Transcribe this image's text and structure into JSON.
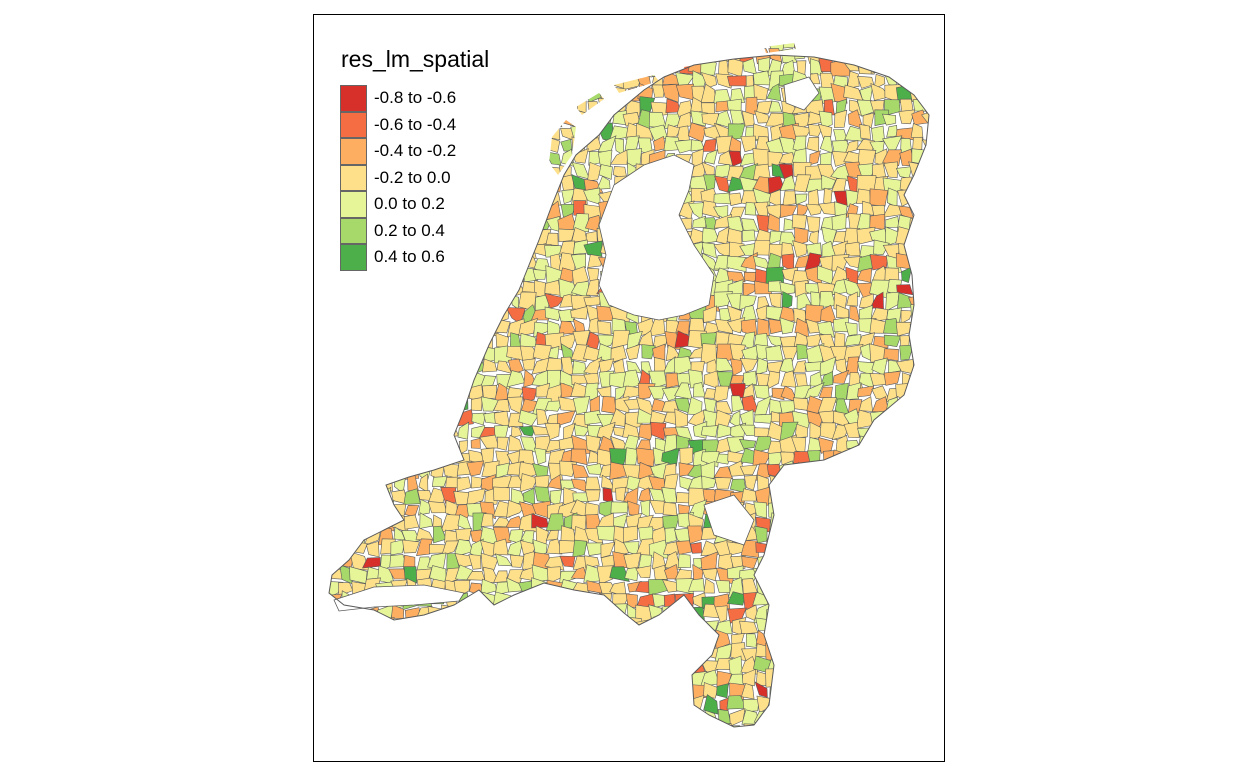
{
  "legend": {
    "title": "res_lm_spatial",
    "classes": [
      {
        "label": "-0.8 to -0.6",
        "color": "#d7302a"
      },
      {
        "label": "-0.6 to -0.4",
        "color": "#f46d43"
      },
      {
        "label": "-0.4 to -0.2",
        "color": "#fdae61"
      },
      {
        "label": "-0.2 to 0.0",
        "color": "#fee08b"
      },
      {
        "label": "0.0 to 0.2",
        "color": "#e6f598"
      },
      {
        "label": "0.2 to 0.4",
        "color": "#a6d96a"
      },
      {
        "label": "0.4 to 0.6",
        "color": "#4daf4a"
      }
    ]
  },
  "border_color": "#5a5a5a"
}
